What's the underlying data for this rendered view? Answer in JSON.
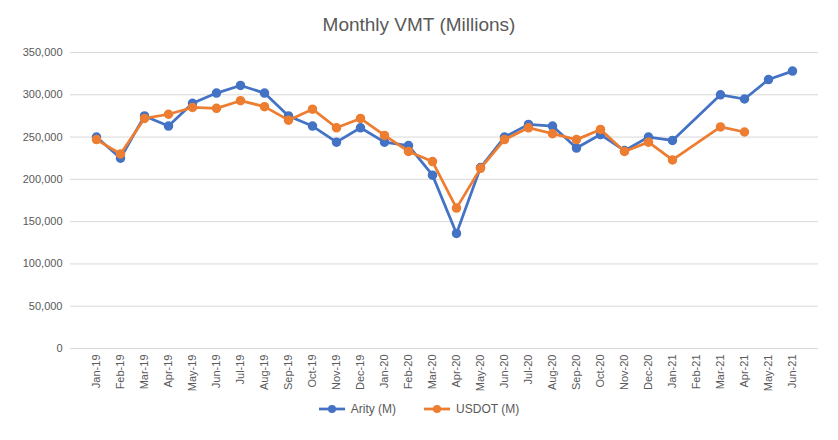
{
  "chart_data": {
    "type": "line",
    "title": "Monthly VMT (Millions)",
    "categories": [
      "Jan-19",
      "Feb-19",
      "Mar-19",
      "Apr-19",
      "May-19",
      "Jun-19",
      "Jul-19",
      "Aug-19",
      "Sep-19",
      "Oct-19",
      "Nov-19",
      "Dec-19",
      "Jan-20",
      "Feb-20",
      "Mar-20",
      "Apr-20",
      "May-20",
      "Jun-20",
      "Jul-20",
      "Aug-20",
      "Sep-20",
      "Oct-20",
      "Nov-20",
      "Dec-20",
      "Jan-21",
      "Feb-21",
      "Mar-21",
      "Apr-21",
      "May-21",
      "Jun-21"
    ],
    "series": [
      {
        "name": "Arity (M)",
        "color": "#4472c4",
        "marker": "circle",
        "values": [
          250000,
          225000,
          275000,
          263000,
          290000,
          302000,
          311000,
          302000,
          275000,
          263000,
          244000,
          261000,
          244000,
          240000,
          205000,
          136000,
          214000,
          250000,
          265000,
          263000,
          237000,
          253000,
          234000,
          250000,
          246000,
          null,
          300000,
          295000,
          318000,
          328000
        ]
      },
      {
        "name": "USDOT (M)",
        "color": "#ed7d31",
        "marker": "circle",
        "values": [
          247000,
          230000,
          272000,
          277000,
          285000,
          284000,
          293000,
          286000,
          270000,
          283000,
          261000,
          272000,
          252000,
          233000,
          221000,
          166000,
          213000,
          247000,
          261000,
          254000,
          247000,
          259000,
          233000,
          244000,
          223000,
          null,
          262000,
          256000,
          null,
          null
        ]
      }
    ],
    "ylim": [
      0,
      350000
    ],
    "yticks": [
      0,
      {
        "value": 50000,
        "label": "50,000"
      },
      {
        "value": 100000,
        "label": "100,000"
      },
      {
        "value": 150000,
        "label": "150,000"
      },
      {
        "value": 200000,
        "label": "200,000"
      },
      {
        "value": 250000,
        "label": "250,000"
      },
      {
        "value": 300000,
        "label": "300,000"
      },
      {
        "value": 350000,
        "label": "350,000"
      }
    ],
    "grid": true,
    "legend": "bottom"
  }
}
